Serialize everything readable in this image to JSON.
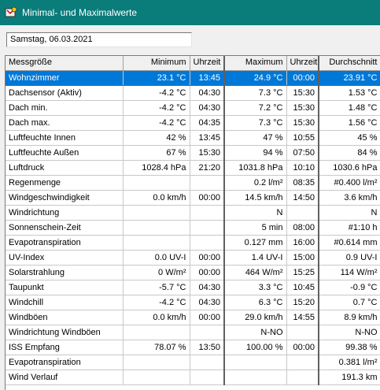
{
  "window": {
    "title": "Minimal- und Maximalwerte"
  },
  "date_field": {
    "value": "Samstag, 06.03.2021"
  },
  "columns": [
    "Messgröße",
    "Minimum",
    "Uhrzeit",
    "Maximum",
    "Uhrzeit",
    "Durchschnitt"
  ],
  "rows": [
    {
      "name": "Wohnzimmer",
      "min": "23.1 °C",
      "min_time": "13:45",
      "max": "24.9 °C",
      "max_time": "00:00",
      "avg": "23.91 °C",
      "selected": true
    },
    {
      "name": "Dachsensor (Aktiv)",
      "min": "-4.2 °C",
      "min_time": "04:30",
      "max": "7.3 °C",
      "max_time": "15:30",
      "avg": "1.53 °C"
    },
    {
      "name": "Dach min.",
      "min": "-4.2 °C",
      "min_time": "04:30",
      "max": "7.2 °C",
      "max_time": "15:30",
      "avg": "1.48 °C"
    },
    {
      "name": "Dach max.",
      "min": "-4.2 °C",
      "min_time": "04:35",
      "max": "7.3 °C",
      "max_time": "15:30",
      "avg": "1.56 °C"
    },
    {
      "name": "Luftfeuchte Innen",
      "min": "42 %",
      "min_time": "13:45",
      "max": "47 %",
      "max_time": "10:55",
      "avg": "45 %"
    },
    {
      "name": "Luftfeuchte Außen",
      "min": "67 %",
      "min_time": "15:30",
      "max": "94 %",
      "max_time": "07:50",
      "avg": "84 %"
    },
    {
      "name": "Luftdruck",
      "min": "1028.4 hPa",
      "min_time": "21:20",
      "max": "1031.8 hPa",
      "max_time": "10:10",
      "avg": "1030.6 hPa"
    },
    {
      "name": "Regenmenge",
      "min": "",
      "min_time": "",
      "max": "0.2 l/m²",
      "max_time": "08:35",
      "avg": "#0.400 l/m²"
    },
    {
      "name": "Windgeschwindigkeit",
      "min": "0.0 km/h",
      "min_time": "00:00",
      "max": "14.5 km/h",
      "max_time": "14:50",
      "avg": "3.6 km/h"
    },
    {
      "name": "Windrichtung",
      "min": "",
      "min_time": "",
      "max": "N",
      "max_time": "",
      "avg": "N"
    },
    {
      "name": "Sonnenschein-Zeit",
      "min": "",
      "min_time": "",
      "max": "5 min",
      "max_time": "08:00",
      "avg": "#1:10 h"
    },
    {
      "name": "Evapotranspiration",
      "min": "",
      "min_time": "",
      "max": "0.127 mm",
      "max_time": "16:00",
      "avg": "#0.614 mm"
    },
    {
      "name": "UV-Index",
      "min": "0.0 UV-I",
      "min_time": "00:00",
      "max": "1.4 UV-I",
      "max_time": "15:00",
      "avg": "0.9 UV-I"
    },
    {
      "name": "Solarstrahlung",
      "min": "0 W/m²",
      "min_time": "00:00",
      "max": "464 W/m²",
      "max_time": "15:25",
      "avg": "114 W/m²"
    },
    {
      "name": "Taupunkt",
      "min": "-5.7 °C",
      "min_time": "04:30",
      "max": "3.3 °C",
      "max_time": "10:45",
      "avg": "-0.9 °C"
    },
    {
      "name": "Windchill",
      "min": "-4.2 °C",
      "min_time": "04:30",
      "max": "6.3 °C",
      "max_time": "15:20",
      "avg": "0.7 °C"
    },
    {
      "name": "Windböen",
      "min": "0.0 km/h",
      "min_time": "00:00",
      "max": "29.0 km/h",
      "max_time": "14:55",
      "avg": "8.9 km/h"
    },
    {
      "name": "Windrichtung Windböen",
      "min": "",
      "min_time": "",
      "max": "N-NO",
      "max_time": "",
      "avg": "N-NO"
    },
    {
      "name": "ISS Empfang",
      "min": "78.07 %",
      "min_time": "13:50",
      "max": "100.00 %",
      "max_time": "00:00",
      "avg": "99.38 %"
    },
    {
      "name": "Evapotranspiration",
      "min": "",
      "min_time": "",
      "max": "",
      "max_time": "",
      "avg": "0.381 l/m²"
    },
    {
      "name": "Wind Verlauf",
      "min": "",
      "min_time": "",
      "max": "",
      "max_time": "",
      "avg": "191.3 km"
    }
  ]
}
